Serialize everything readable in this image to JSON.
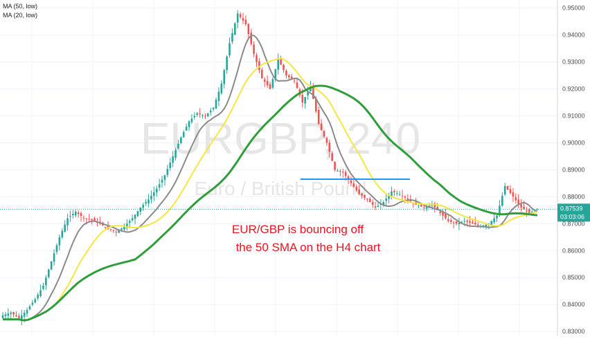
{
  "chart_data": {
    "type": "line",
    "watermark_symbol": "EURGBP, 240",
    "watermark_name": "Euro / British Pound",
    "legend": [
      {
        "label": "MA (50, low)",
        "color": "#2e9e3a"
      },
      {
        "label": "MA (20, low)",
        "color": "#e0e000"
      }
    ],
    "annotation_line1": "EUR/GBP is bouncing off",
    "annotation_line2": "the 50 SMA on the H4 chart",
    "annotation_color": "#e8141e",
    "price_label": "0.87539",
    "countdown_label": "03:03:06",
    "ylim": [
      0.8285,
      0.953
    ],
    "yticks": [
      0.83,
      0.84,
      0.85,
      0.86,
      0.87,
      0.88,
      0.89,
      0.9,
      0.91,
      0.92,
      0.93,
      0.94,
      0.95
    ],
    "ytick_labels": [
      "0.83000",
      "0.84000",
      "0.85000",
      "0.86000",
      "0.87000",
      "0.88000",
      "0.89000",
      "0.90000",
      "0.91000",
      "0.92000",
      "0.93000",
      "0.94000",
      "0.95000"
    ],
    "last_price": 0.87539,
    "resistance_level": 0.8865,
    "colors": {
      "up": "#26a69a",
      "down": "#ef5350",
      "ma50": "#2e9e3a",
      "ma20": "#f5e642",
      "ma_gray": "#8a8a8a",
      "level": "#2196f3"
    },
    "close_anchors": [
      0.836,
      0.837,
      0.835,
      0.838,
      0.842,
      0.847,
      0.856,
      0.865,
      0.872,
      0.8745,
      0.872,
      0.8715,
      0.87,
      0.868,
      0.867,
      0.869,
      0.872,
      0.876,
      0.879,
      0.883,
      0.888,
      0.895,
      0.902,
      0.908,
      0.911,
      0.91,
      0.913,
      0.922,
      0.937,
      0.948,
      0.944,
      0.933,
      0.924,
      0.92,
      0.931,
      0.925,
      0.923,
      0.915,
      0.921,
      0.907,
      0.9,
      0.89,
      0.889,
      0.885,
      0.881,
      0.879,
      0.876,
      0.878,
      0.882,
      0.881,
      0.879,
      0.877,
      0.876,
      0.877,
      0.874,
      0.871,
      0.87,
      0.871,
      0.87,
      0.869,
      0.87,
      0.873,
      0.884,
      0.88,
      0.876,
      0.874,
      0.8754
    ]
  }
}
